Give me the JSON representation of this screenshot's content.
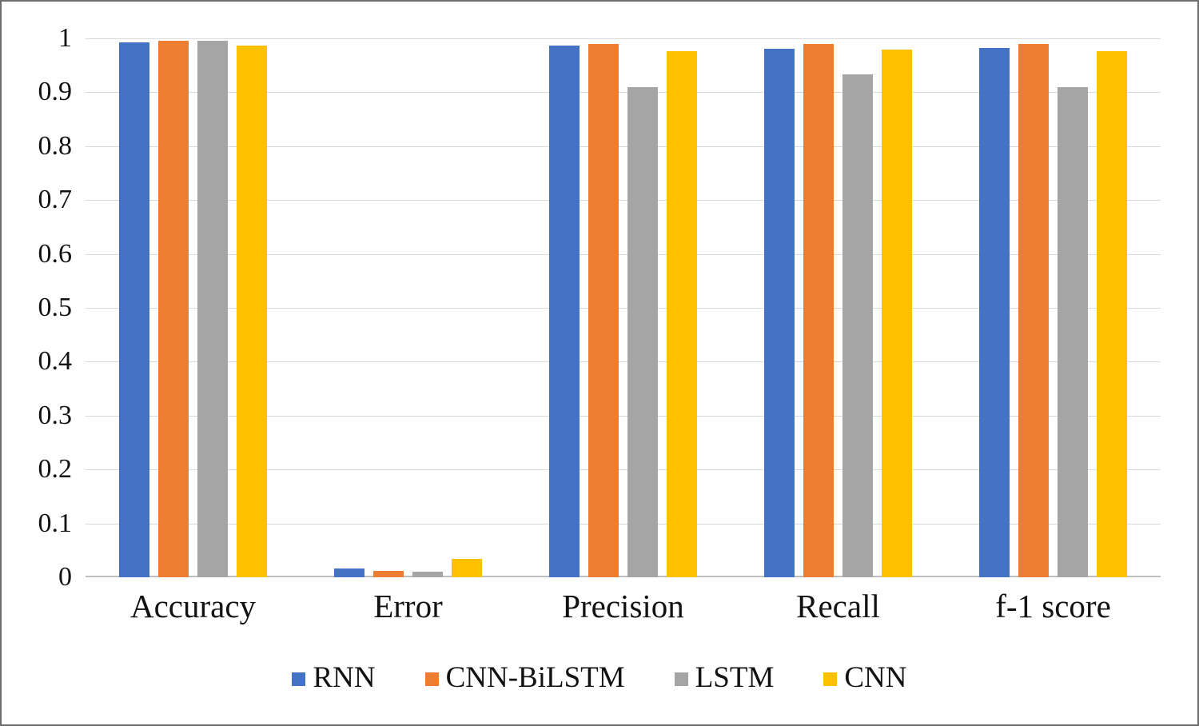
{
  "chart_data": {
    "type": "bar",
    "title": "",
    "xlabel": "",
    "ylabel": "",
    "categories": [
      "Accuracy",
      "Error",
      "Precision",
      "Recall",
      "f-1 score"
    ],
    "series": [
      {
        "name": "RNN",
        "color": "#4472C4",
        "values": [
          0.992,
          0.016,
          0.986,
          0.98,
          0.982
        ]
      },
      {
        "name": "CNN-BiLSTM",
        "color": "#ED7D31",
        "values": [
          0.995,
          0.012,
          0.989,
          0.99,
          0.99
        ]
      },
      {
        "name": "LSTM",
        "color": "#A5A5A5",
        "values": [
          0.996,
          0.01,
          0.91,
          0.933,
          0.909
        ]
      },
      {
        "name": "CNN",
        "color": "#FFC000",
        "values": [
          0.987,
          0.034,
          0.976,
          0.979,
          0.977
        ]
      }
    ],
    "ylim": [
      0,
      1
    ],
    "yticks": [
      0,
      0.1,
      0.2,
      0.3,
      0.4,
      0.5,
      0.6,
      0.7,
      0.8,
      0.9,
      1
    ],
    "ytick_labels": [
      "0",
      "0.1",
      "0.2",
      "0.3",
      "0.4",
      "0.5",
      "0.6",
      "0.7",
      "0.8",
      "0.9",
      "1"
    ],
    "grid": true,
    "legend_position": "bottom"
  },
  "style": {
    "grid_color": "#d9d9d9",
    "axis_line_color": "#bfbfbf",
    "text_color": "#121212",
    "border_color": "#6e6e6e",
    "background": "#ffffff"
  }
}
